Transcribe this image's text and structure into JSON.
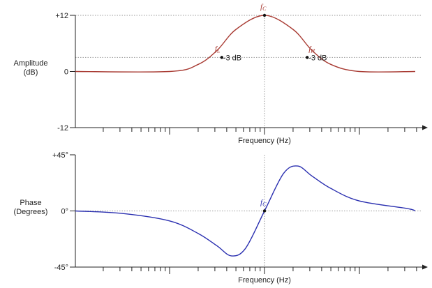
{
  "chart_data": [
    {
      "type": "line",
      "ylabel": "Amplitude\n(dB)",
      "xlabel": "Frequency (Hz)",
      "y_ticks": [
        "+12",
        "0",
        "-12"
      ],
      "ylim": [
        -12,
        12
      ],
      "x_scale": "log",
      "grid_lines_dB": [
        12,
        3
      ],
      "series": [
        {
          "color": "#a83a32",
          "x_relative": [
            -2.0,
            -1.0,
            -0.7,
            -0.5,
            -0.3,
            0.0,
            0.3,
            0.5,
            0.7,
            1.0,
            2.0
          ],
          "values": [
            0,
            0,
            1.5,
            4.5,
            9.0,
            12,
            9.0,
            4.5,
            1.5,
            0,
            0
          ]
        }
      ],
      "annotations": [
        {
          "name": "fL",
          "text": "f",
          "sub": "L",
          "note": "-3 dB",
          "x_relative": -0.45,
          "y": 3
        },
        {
          "name": "fC",
          "text": "f",
          "sub": "C",
          "note": "",
          "x_relative": 0.0,
          "y": 12
        },
        {
          "name": "fH",
          "text": "f",
          "sub": "H",
          "note": "-3 dB",
          "x_relative": 0.45,
          "y": 3
        }
      ]
    },
    {
      "type": "line",
      "ylabel": "Phase\n(Degrees)",
      "xlabel": "Frequency (Hz)",
      "y_ticks": [
        "+45°",
        "0°",
        "-45°"
      ],
      "ylim": [
        -45,
        45
      ],
      "x_scale": "log",
      "series": [
        {
          "color": "#2a2fb0",
          "x_relative": [
            -2.0,
            -1.5,
            -1.0,
            -0.7,
            -0.5,
            -0.35,
            -0.2,
            0.0,
            0.2,
            0.35,
            0.5,
            0.7,
            1.0,
            1.5,
            2.0
          ],
          "values": [
            0,
            -2,
            -8,
            -18,
            -28,
            -36,
            -30,
            0,
            30,
            36,
            28,
            18,
            8,
            2,
            0
          ]
        }
      ],
      "annotations": [
        {
          "name": "fC",
          "text": "f",
          "sub": "C",
          "note": "",
          "x_relative": 0.0,
          "y": 0
        }
      ]
    }
  ],
  "colors": {
    "amplitude": "#a83a32",
    "phase": "#2a2fb0",
    "axis": "#222222",
    "grid": "#999999"
  }
}
